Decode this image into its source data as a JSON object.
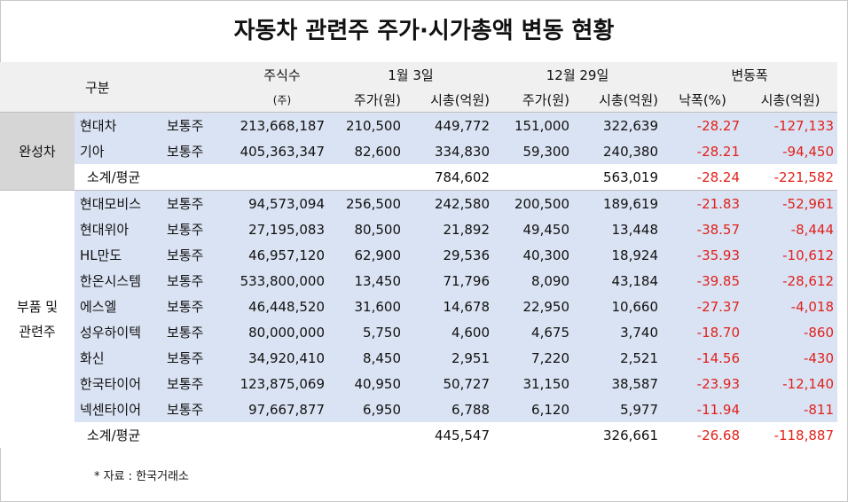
{
  "title": "자동차 관련주 주가·시가총액 변동 현황",
  "headers": {
    "category": "구분",
    "shares": "주식수",
    "shares_unit": "(주)",
    "jan3": "1월 3일",
    "dec29": "12월 29일",
    "change": "변동폭",
    "price": "주가(원)",
    "mcap": "시총(억원)",
    "drop_pct": "낙폭(%)"
  },
  "groups": {
    "vehicles": "완성차",
    "parts_l1": "부품 및",
    "parts_l2": "관련주"
  },
  "rows": [
    {
      "name": "현대차",
      "type": "보통주",
      "shares": "213,668,187",
      "p1": "210,500",
      "m1": "449,772",
      "p2": "151,000",
      "m2": "322,639",
      "pct": "-28.27",
      "dm": "-127,133"
    },
    {
      "name": "기아",
      "type": "보통주",
      "shares": "405,363,347",
      "p1": "82,600",
      "m1": "334,830",
      "p2": "59,300",
      "m2": "240,380",
      "pct": "-28.21",
      "dm": "-94,450"
    },
    {
      "name": "소계/평균",
      "type": "",
      "shares": "",
      "p1": "",
      "m1": "784,602",
      "p2": "",
      "m2": "563,019",
      "pct": "-28.24",
      "dm": "-221,582"
    },
    {
      "name": "현대모비스",
      "type": "보통주",
      "shares": "94,573,094",
      "p1": "256,500",
      "m1": "242,580",
      "p2": "200,500",
      "m2": "189,619",
      "pct": "-21.83",
      "dm": "-52,961"
    },
    {
      "name": "현대위아",
      "type": "보통주",
      "shares": "27,195,083",
      "p1": "80,500",
      "m1": "21,892",
      "p2": "49,450",
      "m2": "13,448",
      "pct": "-38.57",
      "dm": "-8,444"
    },
    {
      "name": "HL만도",
      "type": "보통주",
      "shares": "46,957,120",
      "p1": "62,900",
      "m1": "29,536",
      "p2": "40,300",
      "m2": "18,924",
      "pct": "-35.93",
      "dm": "-10,612"
    },
    {
      "name": "한온시스템",
      "type": "보통주",
      "shares": "533,800,000",
      "p1": "13,450",
      "m1": "71,796",
      "p2": "8,090",
      "m2": "43,184",
      "pct": "-39.85",
      "dm": "-28,612"
    },
    {
      "name": "에스엘",
      "type": "보통주",
      "shares": "46,448,520",
      "p1": "31,600",
      "m1": "14,678",
      "p2": "22,950",
      "m2": "10,660",
      "pct": "-27.37",
      "dm": "-4,018"
    },
    {
      "name": "성우하이텍",
      "type": "보통주",
      "shares": "80,000,000",
      "p1": "5,750",
      "m1": "4,600",
      "p2": "4,675",
      "m2": "3,740",
      "pct": "-18.70",
      "dm": "-860"
    },
    {
      "name": "화신",
      "type": "보통주",
      "shares": "34,920,410",
      "p1": "8,450",
      "m1": "2,951",
      "p2": "7,220",
      "m2": "2,521",
      "pct": "-14.56",
      "dm": "-430"
    },
    {
      "name": "한국타이어",
      "type": "보통주",
      "shares": "123,875,069",
      "p1": "40,950",
      "m1": "50,727",
      "p2": "31,150",
      "m2": "38,587",
      "pct": "-23.93",
      "dm": "-12,140"
    },
    {
      "name": "넥센타이어",
      "type": "보통주",
      "shares": "97,667,877",
      "p1": "6,950",
      "m1": "6,788",
      "p2": "6,120",
      "m2": "5,977",
      "pct": "-11.94",
      "dm": "-811"
    },
    {
      "name": "소계/평균",
      "type": "",
      "shares": "",
      "p1": "",
      "m1": "445,547",
      "p2": "",
      "m2": "326,661",
      "pct": "-26.68",
      "dm": "-118,887"
    }
  ],
  "source": "* 자료 : 한국거래소",
  "colors": {
    "header_bg": "#f0f0f0",
    "group_bg": "#d6d6d6",
    "stripe_bg": "#dae3f3",
    "negative": "#e0211b"
  }
}
